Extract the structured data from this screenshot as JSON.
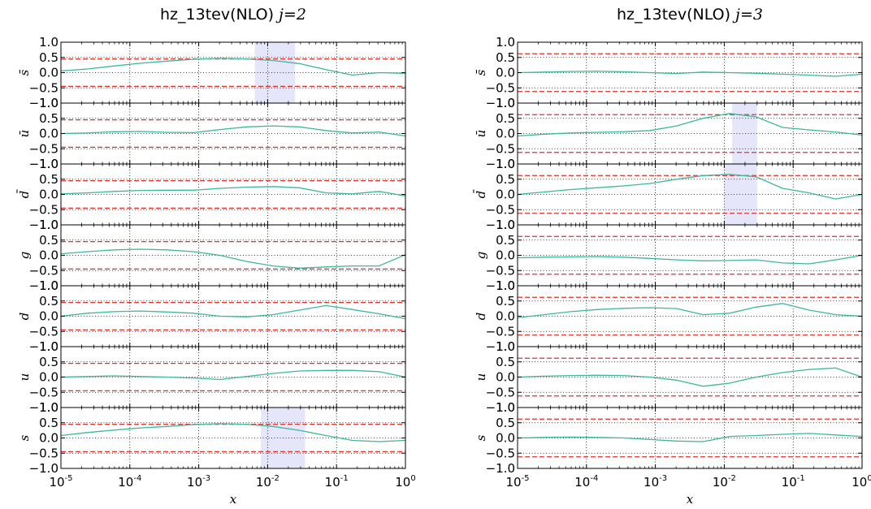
{
  "chart_data": [
    {
      "type": "line",
      "title_text": "hz_13tev(NLO)",
      "title_var": "j",
      "title_eq": "=2",
      "xlabel": "x",
      "xscale": "log",
      "xlim": [
        1e-05,
        1
      ],
      "xtick_exponents": [
        "-5",
        "-4",
        "-3",
        "-2",
        "-1",
        "0"
      ],
      "ylim": [
        -1.0,
        1.0
      ],
      "ytick_labels": [
        "1.0",
        "0.5",
        "0.0",
        "−0.5",
        "−1.0"
      ],
      "grid": true,
      "threshold": 0.45,
      "colors": {
        "curve": "#3cb89a",
        "threshold": "#e0302a",
        "highlight": "#e6e6fb"
      },
      "panels": [
        {
          "label": "s̄",
          "values": [
            0.06,
            0.12,
            0.22,
            0.31,
            0.38,
            0.44,
            0.47,
            0.45,
            0.4,
            0.3,
            0.1,
            -0.08,
            0.0,
            -0.02
          ],
          "highlight": [
            0.0065,
            0.025
          ]
        },
        {
          "label": "ū",
          "values": [
            0.0,
            0.02,
            0.06,
            0.07,
            0.04,
            0.03,
            0.13,
            0.22,
            0.25,
            0.22,
            0.1,
            0.02,
            0.05,
            -0.08
          ],
          "highlight": null
        },
        {
          "label": "d̄",
          "values": [
            0.02,
            0.05,
            0.1,
            0.13,
            0.14,
            0.14,
            0.2,
            0.24,
            0.26,
            0.22,
            0.05,
            0.02,
            0.1,
            -0.05
          ],
          "highlight": null
        },
        {
          "label": "g",
          "values": [
            0.05,
            0.12,
            0.18,
            0.2,
            0.18,
            0.12,
            0.0,
            -0.2,
            -0.35,
            -0.42,
            -0.38,
            -0.35,
            -0.35,
            0.02
          ],
          "highlight": null
        },
        {
          "label": "d",
          "values": [
            0.0,
            0.1,
            0.15,
            0.17,
            0.14,
            0.1,
            0.0,
            -0.02,
            0.05,
            0.2,
            0.35,
            0.22,
            0.08,
            -0.08
          ],
          "highlight": null
        },
        {
          "label": "u",
          "values": [
            0.0,
            0.02,
            0.04,
            0.02,
            0.0,
            -0.03,
            -0.08,
            0.02,
            0.12,
            0.2,
            0.22,
            0.22,
            0.18,
            0.0
          ],
          "highlight": null
        },
        {
          "label": "s",
          "values": [
            0.08,
            0.18,
            0.26,
            0.33,
            0.38,
            0.44,
            0.47,
            0.45,
            0.38,
            0.25,
            0.08,
            -0.08,
            -0.12,
            -0.08
          ],
          "highlight": [
            0.008,
            0.035
          ]
        }
      ]
    },
    {
      "type": "line",
      "title_text": "hz_13tev(NLO)",
      "title_var": "j",
      "title_eq": "=3",
      "xlabel": "x",
      "xscale": "log",
      "xlim": [
        1e-05,
        1
      ],
      "xtick_exponents": [
        "-5",
        "-4",
        "-3",
        "-2",
        "-1",
        "0"
      ],
      "ylim": [
        -1.0,
        1.0
      ],
      "ytick_labels": [
        "1.0",
        "0.5",
        "0.0",
        "−0.5",
        "−1.0"
      ],
      "grid": true,
      "threshold": 0.62,
      "colors": {
        "curve": "#3cb89a",
        "threshold": "#e0302a",
        "highlight": "#e6e6fb"
      },
      "panels": [
        {
          "label": "s̄",
          "values": [
            0.0,
            0.02,
            0.04,
            0.05,
            0.03,
            0.0,
            -0.03,
            0.02,
            0.0,
            -0.02,
            -0.05,
            -0.08,
            -0.12,
            -0.05
          ],
          "highlight": null
        },
        {
          "label": "ū",
          "values": [
            -0.08,
            -0.02,
            0.02,
            0.04,
            0.06,
            0.1,
            0.25,
            0.5,
            0.66,
            0.55,
            0.2,
            0.12,
            0.05,
            -0.05
          ],
          "highlight": [
            0.013,
            0.03
          ]
        },
        {
          "label": "d̄",
          "values": [
            0.0,
            0.08,
            0.16,
            0.22,
            0.28,
            0.36,
            0.5,
            0.62,
            0.66,
            0.58,
            0.2,
            0.05,
            -0.15,
            0.0
          ],
          "highlight": [
            0.01,
            0.03
          ]
        },
        {
          "label": "g",
          "values": [
            -0.08,
            -0.06,
            -0.05,
            -0.04,
            -0.06,
            -0.1,
            -0.15,
            -0.18,
            -0.17,
            -0.15,
            -0.25,
            -0.28,
            -0.15,
            0.0
          ],
          "highlight": null
        },
        {
          "label": "d",
          "values": [
            -0.05,
            0.05,
            0.15,
            0.22,
            0.26,
            0.28,
            0.25,
            0.05,
            0.1,
            0.3,
            0.42,
            0.2,
            0.05,
            0.0
          ],
          "highlight": null
        },
        {
          "label": "u",
          "values": [
            0.0,
            0.03,
            0.05,
            0.06,
            0.05,
            0.0,
            -0.1,
            -0.3,
            -0.2,
            0.0,
            0.15,
            0.25,
            0.3,
            0.0
          ],
          "highlight": null
        },
        {
          "label": "s",
          "values": [
            0.0,
            0.02,
            0.03,
            0.02,
            0.0,
            -0.05,
            -0.1,
            -0.12,
            0.05,
            0.08,
            0.12,
            0.15,
            0.1,
            0.05
          ],
          "highlight": null
        }
      ]
    }
  ]
}
